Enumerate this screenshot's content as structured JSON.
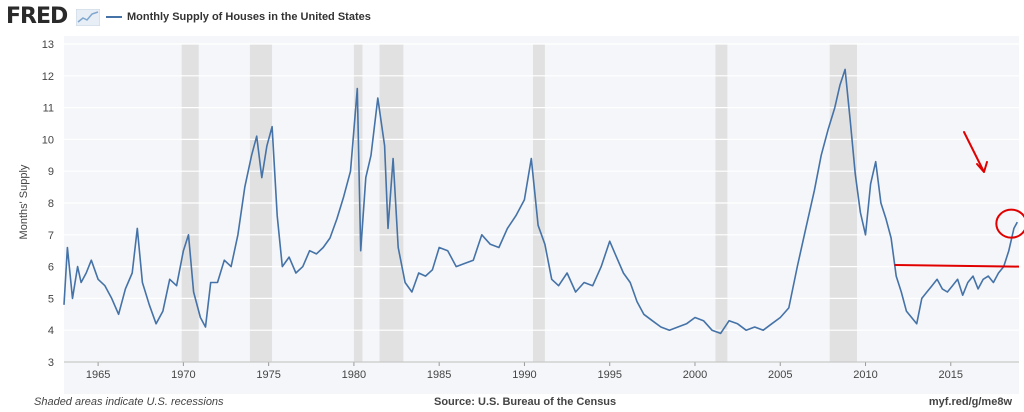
{
  "header": {
    "logo_text": "FRED",
    "legend_label": "Monthly Supply of Houses in the United States",
    "series_color": "#4572A7"
  },
  "footer": {
    "recession_note": "Shaded areas indicate U.S. recessions",
    "source": "Source: U.S. Bureau of the Census",
    "short_url": "myf.red/g/me8w"
  },
  "chart_data": {
    "type": "line",
    "title": "",
    "xlabel": "",
    "ylabel": "Months' Supply",
    "xlim": [
      1963.0,
      2019.0
    ],
    "ylim": [
      3,
      13
    ],
    "y_ticks": [
      3,
      4,
      5,
      6,
      7,
      8,
      9,
      10,
      11,
      12,
      13
    ],
    "x_ticks": [
      1965,
      1970,
      1975,
      1980,
      1985,
      1990,
      1995,
      2000,
      2005,
      2010,
      2015
    ],
    "grid": true,
    "legend": "top-left",
    "recessions": [
      [
        1969.9,
        1970.9
      ],
      [
        1973.9,
        1975.2
      ],
      [
        1980.0,
        1980.5
      ],
      [
        1981.5,
        1982.9
      ],
      [
        1990.5,
        1991.2
      ],
      [
        2001.2,
        2001.9
      ],
      [
        2007.9,
        2009.5
      ]
    ],
    "series": [
      {
        "name": "Monthly Supply of Houses in the United States",
        "color": "#4572A7",
        "x": [
          1963.0,
          1963.2,
          1963.5,
          1963.8,
          1964.0,
          1964.3,
          1964.6,
          1965.0,
          1965.4,
          1965.8,
          1966.2,
          1966.6,
          1967.0,
          1967.3,
          1967.6,
          1968.0,
          1968.4,
          1968.8,
          1969.2,
          1969.6,
          1970.0,
          1970.3,
          1970.6,
          1971.0,
          1971.3,
          1971.6,
          1972.0,
          1972.4,
          1972.8,
          1973.2,
          1973.6,
          1974.0,
          1974.3,
          1974.6,
          1974.9,
          1975.2,
          1975.5,
          1975.8,
          1976.2,
          1976.6,
          1977.0,
          1977.4,
          1977.8,
          1978.2,
          1978.6,
          1979.0,
          1979.4,
          1979.8,
          1980.2,
          1980.4,
          1980.7,
          1981.0,
          1981.4,
          1981.8,
          1982.0,
          1982.3,
          1982.6,
          1983.0,
          1983.4,
          1983.8,
          1984.2,
          1984.6,
          1985.0,
          1985.5,
          1986.0,
          1986.5,
          1987.0,
          1987.5,
          1988.0,
          1988.5,
          1989.0,
          1989.5,
          1990.0,
          1990.4,
          1990.8,
          1991.2,
          1991.6,
          1992.0,
          1992.5,
          1993.0,
          1993.5,
          1994.0,
          1994.5,
          1995.0,
          1995.4,
          1995.8,
          1996.2,
          1996.6,
          1997.0,
          1997.5,
          1998.0,
          1998.5,
          1999.0,
          1999.5,
          2000.0,
          2000.5,
          2001.0,
          2001.5,
          2002.0,
          2002.5,
          2003.0,
          2003.5,
          2004.0,
          2004.5,
          2005.0,
          2005.5,
          2006.0,
          2006.5,
          2007.0,
          2007.4,
          2007.8,
          2008.2,
          2008.5,
          2008.8,
          2009.1,
          2009.4,
          2009.7,
          2010.0,
          2010.3,
          2010.6,
          2010.9,
          2011.2,
          2011.5,
          2011.8,
          2012.1,
          2012.4,
          2012.7,
          2013.0,
          2013.3,
          2013.6,
          2013.9,
          2014.2,
          2014.5,
          2014.8,
          2015.1,
          2015.4,
          2015.7,
          2016.0,
          2016.3,
          2016.6,
          2016.9,
          2017.2,
          2017.5,
          2017.8,
          2018.1,
          2018.4,
          2018.7,
          2018.9
        ],
        "values": [
          4.8,
          6.6,
          5.0,
          6.0,
          5.5,
          5.8,
          6.2,
          5.6,
          5.4,
          5.0,
          4.5,
          5.3,
          5.8,
          7.2,
          5.5,
          4.8,
          4.2,
          4.6,
          5.6,
          5.4,
          6.5,
          7.0,
          5.2,
          4.4,
          4.1,
          5.5,
          5.5,
          6.2,
          6.0,
          7.0,
          8.5,
          9.5,
          10.1,
          8.8,
          9.8,
          10.4,
          7.6,
          6.0,
          6.3,
          5.8,
          6.0,
          6.5,
          6.4,
          6.6,
          6.9,
          7.5,
          8.2,
          9.0,
          11.6,
          6.5,
          8.8,
          9.5,
          11.3,
          9.8,
          7.2,
          9.4,
          6.6,
          5.5,
          5.2,
          5.8,
          5.7,
          5.9,
          6.6,
          6.5,
          6.0,
          6.1,
          6.2,
          7.0,
          6.7,
          6.6,
          7.2,
          7.6,
          8.1,
          9.4,
          7.3,
          6.7,
          5.6,
          5.4,
          5.8,
          5.2,
          5.5,
          5.4,
          6.0,
          6.8,
          6.3,
          5.8,
          5.5,
          4.9,
          4.5,
          4.3,
          4.1,
          4.0,
          4.1,
          4.2,
          4.4,
          4.3,
          4.0,
          3.9,
          4.3,
          4.2,
          4.0,
          4.1,
          4.0,
          4.2,
          4.4,
          4.7,
          6.0,
          7.2,
          8.4,
          9.5,
          10.3,
          11.0,
          11.7,
          12.2,
          10.6,
          8.9,
          7.7,
          7.0,
          8.6,
          9.3,
          8.0,
          7.5,
          6.9,
          5.7,
          5.2,
          4.6,
          4.4,
          4.2,
          5.0,
          5.2,
          5.4,
          5.6,
          5.3,
          5.2,
          5.4,
          5.6,
          5.1,
          5.5,
          5.7,
          5.3,
          5.6,
          5.7,
          5.5,
          5.8,
          6.0,
          6.5,
          7.2,
          7.4
        ]
      }
    ],
    "annotations": [
      "red arrow pointing down toward latest values",
      "red circle around latest values",
      "red horizontal line at about 6.0 months from 2011.7 to 2019"
    ]
  }
}
